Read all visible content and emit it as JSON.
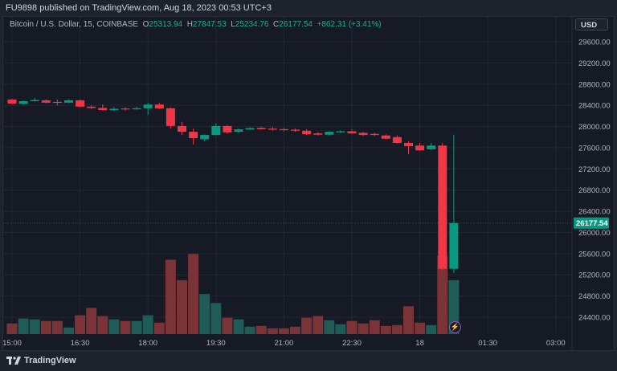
{
  "publish_line": "FU9898 published on TradingView.com, Aug 18, 2023 00:53 UTC+3",
  "legend": {
    "symbol": "Bitcoin / U.S. Dollar, 15, COINBASE",
    "o_label": "O",
    "o": "25313.94",
    "h_label": "H",
    "h": "27847.53",
    "l_label": "L",
    "l": "25234.76",
    "c_label": "C",
    "c": "26177.54",
    "change": "+862.31 (+3.41%)"
  },
  "currency_button": "USD",
  "last_price_label": "26177.54",
  "footer_brand": "TradingView",
  "colors": {
    "up": "#089981",
    "down": "#f23645",
    "vol_up": "#1f5c57",
    "vol_down": "#7a3438",
    "bg": "#161a25"
  },
  "chart_data": {
    "type": "candlestick",
    "interval_minutes": 15,
    "price_ticks": [
      "29600.00",
      "29200.00",
      "28800.00",
      "28400.00",
      "28000.00",
      "27600.00",
      "27200.00",
      "26800.00",
      "26400.00",
      "26000.00",
      "25600.00",
      "25200.00",
      "24800.00",
      "24400.00"
    ],
    "time_ticks": [
      "15:00",
      "16:30",
      "18:00",
      "19:30",
      "21:00",
      "22:30",
      "18",
      "01:30",
      "03:00"
    ],
    "ylim": [
      24000,
      29800
    ],
    "grid": true,
    "times": [
      "15:00",
      "15:15",
      "15:30",
      "15:45",
      "16:00",
      "16:15",
      "16:30",
      "16:45",
      "17:00",
      "17:15",
      "17:30",
      "17:45",
      "18:00",
      "18:15",
      "18:30",
      "18:45",
      "19:00",
      "19:15",
      "19:30",
      "19:45",
      "20:00",
      "20:15",
      "20:30",
      "20:45",
      "21:00",
      "21:15",
      "21:30",
      "21:45",
      "22:00",
      "22:15",
      "22:30",
      "22:45",
      "23:00",
      "23:15",
      "23:30",
      "23:45",
      "00:00",
      "00:15",
      "00:30",
      "00:45"
    ],
    "ohlc": [
      [
        28509,
        28520,
        28420,
        28433
      ],
      [
        28428,
        28490,
        28410,
        28478
      ],
      [
        28478,
        28540,
        28465,
        28500
      ],
      [
        28494,
        28510,
        28440,
        28450
      ],
      [
        28465,
        28510,
        28400,
        28460
      ],
      [
        28450,
        28510,
        28440,
        28495
      ],
      [
        28495,
        28505,
        28365,
        28375
      ],
      [
        28375,
        28400,
        28330,
        28350
      ],
      [
        28350,
        28420,
        28300,
        28310
      ],
      [
        28310,
        28370,
        28290,
        28335
      ],
      [
        28340,
        28360,
        28300,
        28325
      ],
      [
        28325,
        28370,
        28315,
        28345
      ],
      [
        28345,
        28450,
        28220,
        28415
      ],
      [
        28415,
        28450,
        28330,
        28340
      ],
      [
        28345,
        28360,
        27960,
        28010
      ],
      [
        28010,
        28090,
        27840,
        27900
      ],
      [
        27900,
        27960,
        27660,
        27780
      ],
      [
        27760,
        27850,
        27720,
        27840
      ],
      [
        27840,
        28060,
        27830,
        28010
      ],
      [
        28010,
        28030,
        27860,
        27890
      ],
      [
        27900,
        27960,
        27880,
        27945
      ],
      [
        27945,
        27990,
        27930,
        27970
      ],
      [
        27975,
        27990,
        27940,
        27950
      ],
      [
        27960,
        27990,
        27920,
        27940
      ],
      [
        27950,
        27970,
        27910,
        27930
      ],
      [
        27940,
        27960,
        27900,
        27920
      ],
      [
        27920,
        27950,
        27840,
        27855
      ],
      [
        27870,
        27890,
        27830,
        27845
      ],
      [
        27845,
        27910,
        27830,
        27900
      ],
      [
        27890,
        27930,
        27880,
        27910
      ],
      [
        27910,
        27950,
        27860,
        27870
      ],
      [
        27880,
        27900,
        27820,
        27840
      ],
      [
        27860,
        27880,
        27820,
        27840
      ],
      [
        27830,
        27850,
        27760,
        27770
      ],
      [
        27800,
        27830,
        27680,
        27690
      ],
      [
        27690,
        27720,
        27480,
        27630
      ],
      [
        27640,
        27690,
        27540,
        27550
      ],
      [
        27570,
        27690,
        27560,
        27640
      ],
      [
        27640,
        27690,
        25300,
        25313.94
      ],
      [
        25313.94,
        27847.53,
        25234.76,
        26177.54
      ]
    ],
    "volume_relative": [
      13,
      19,
      18,
      16,
      16,
      8,
      23,
      32,
      22,
      18,
      16,
      16,
      23,
      14,
      91,
      66,
      98,
      49,
      38,
      20,
      18,
      9,
      10,
      7,
      7,
      9,
      20,
      22,
      17,
      12,
      16,
      13,
      17,
      10,
      11,
      34,
      14,
      11,
      96,
      66
    ],
    "last_price": 26177.54
  }
}
